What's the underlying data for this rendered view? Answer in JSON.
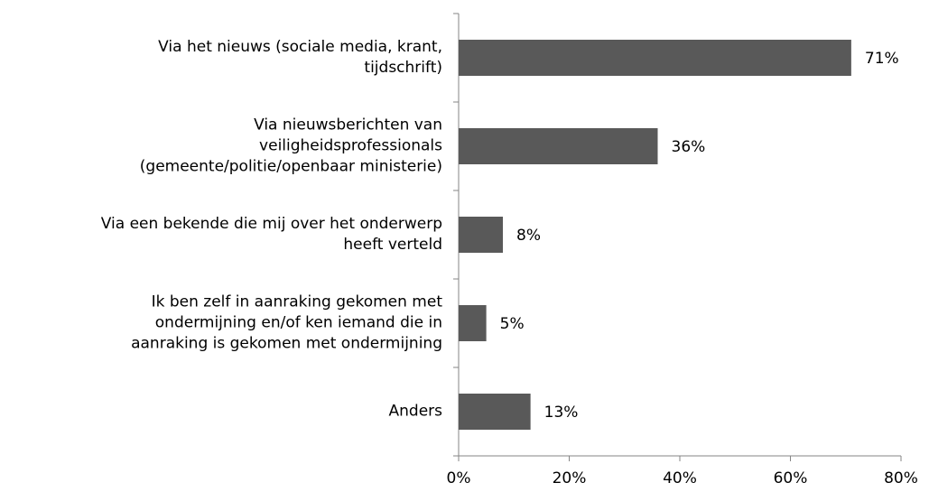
{
  "chart_data": {
    "type": "bar",
    "orientation": "horizontal",
    "categories": [
      "Via het nieuws (sociale media, krant,\ntijdschrift)",
      "Via nieuwsberichten van\nveiligheidsprofessionals\n(gemeente/politie/openbaar ministerie)",
      "Via een bekende die mij over het onderwerp\nheeft verteld",
      "Ik ben zelf in aanraking gekomen met\nondermijning en/of ken iemand die in\naanraking is gekomen met ondermijning",
      "Anders"
    ],
    "values": [
      71,
      36,
      8,
      5,
      13
    ],
    "value_labels": [
      "71%",
      "36%",
      "8%",
      "5%",
      "13%"
    ],
    "color": "#595959",
    "xlim": [
      0,
      80
    ],
    "xticks": [
      {
        "value": 0,
        "label": "0%"
      },
      {
        "value": 20,
        "label": "20%"
      },
      {
        "value": 40,
        "label": "40%"
      },
      {
        "value": 60,
        "label": "60%"
      },
      {
        "value": 80,
        "label": "80%"
      }
    ]
  }
}
